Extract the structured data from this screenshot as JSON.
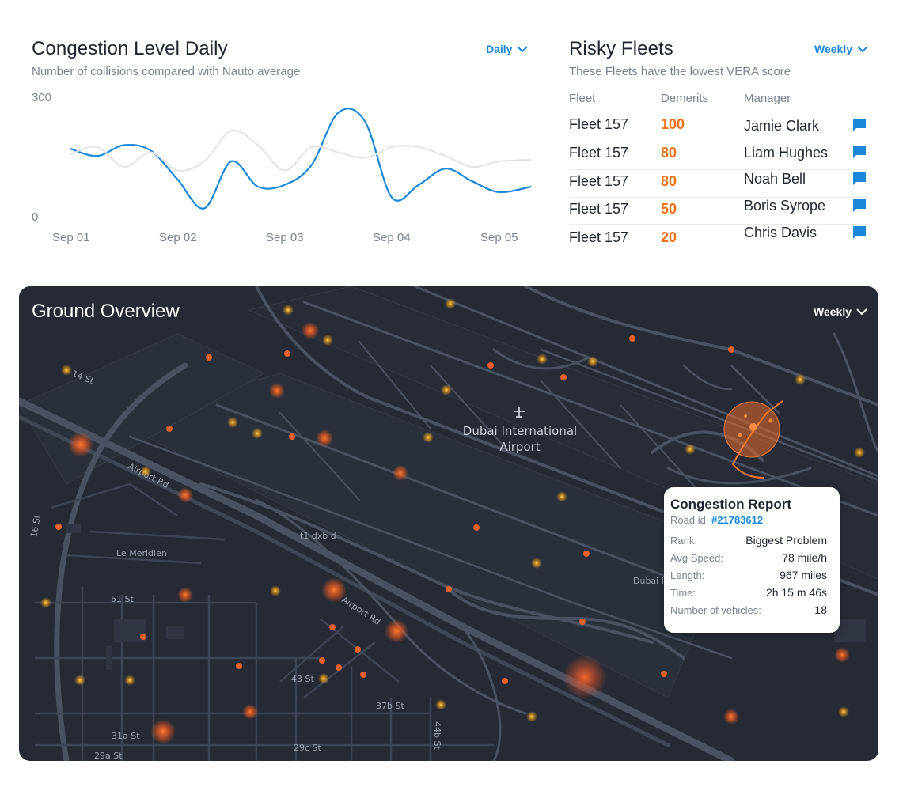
{
  "congestion": {
    "title": "Congestion Level Daily",
    "subtitle": "Number of collisions compared with Nauto average",
    "period": "Daily",
    "y_top": "300",
    "y_bottom": "0",
    "x_labels": [
      "Sep 01",
      "Sep 02",
      "Sep 03",
      "Sep 04",
      "Sep 05"
    ]
  },
  "chart_data": {
    "type": "line",
    "title": "Congestion Level Daily",
    "subtitle": "Number of collisions compared with Nauto average",
    "categories": [
      "Sep 01",
      "Sep 02",
      "Sep 03",
      "Sep 04",
      "Sep 05"
    ],
    "ylim": [
      0,
      300
    ],
    "x": [
      0,
      0.25,
      0.5,
      0.75,
      1,
      1.25,
      1.5,
      1.75,
      2,
      2.25,
      2.5,
      2.75,
      3,
      3.25,
      3.5,
      3.75,
      4,
      4.3
    ],
    "series": [
      {
        "color": "#1b87d9",
        "values": [
          175,
          155,
          185,
          170,
          90,
          10,
          140,
          70,
          75,
          130,
          275,
          250,
          40,
          75,
          120,
          85,
          55,
          70
        ]
      },
      {
        "color": "#e3e3e3",
        "values": [
          160,
          180,
          125,
          165,
          115,
          140,
          225,
          185,
          115,
          180,
          165,
          150,
          180,
          180,
          155,
          125,
          140,
          145
        ]
      }
    ],
    "grid": false,
    "legend": "none"
  },
  "risky": {
    "title": "Risky Fleets",
    "subtitle": "These Fleets have the lowest VERA score",
    "period": "Weekly",
    "headers": {
      "fleet": "Fleet",
      "demerits": "Demerits",
      "manager": "Manager"
    },
    "rows": [
      {
        "fleet": "Fleet 157",
        "demerits": "100",
        "manager": "Jamie Clark"
      },
      {
        "fleet": "Fleet 157",
        "demerits": "80",
        "manager": "Liam Hughes"
      },
      {
        "fleet": "Fleet 157",
        "demerits": "80",
        "manager": "Noah Bell"
      },
      {
        "fleet": "Fleet 157",
        "demerits": "50",
        "manager": "Boris Syrope"
      },
      {
        "fleet": "Fleet 157",
        "demerits": "20",
        "manager": "Chris Davis"
      }
    ]
  },
  "ground": {
    "title": "Ground Overview",
    "period": "Weekly",
    "airport_line1": "Dubai International",
    "airport_line2": "Airport",
    "streets": {
      "s14": "14 St",
      "airport_rd_1": "Airport Rd",
      "s16": "16 St",
      "le_meridien": "Le Meridien",
      "t1": "t1 dxb d",
      "s51": "51 St",
      "airport_rd_2": "Airport Rd",
      "s43": "43 St",
      "s37b": "37b St",
      "s44b": "44b St",
      "s31a": "31a St",
      "s29c": "29c St",
      "s29a": "29a St",
      "dubai_cut": "Dubai In"
    }
  },
  "report": {
    "title": "Congestion Report",
    "road_label": "Road id:",
    "road_id": "#21783612",
    "fields": [
      {
        "label": "Rank:",
        "value": "Biggest Problem"
      },
      {
        "label": "Avg Speed:",
        "value": "78 mile/h"
      },
      {
        "label": "Length:",
        "value": "967 miles"
      },
      {
        "label": "Time:",
        "value": "2h 15 m 46s"
      },
      {
        "label": "Number of vehicles:",
        "value": "18"
      }
    ]
  }
}
